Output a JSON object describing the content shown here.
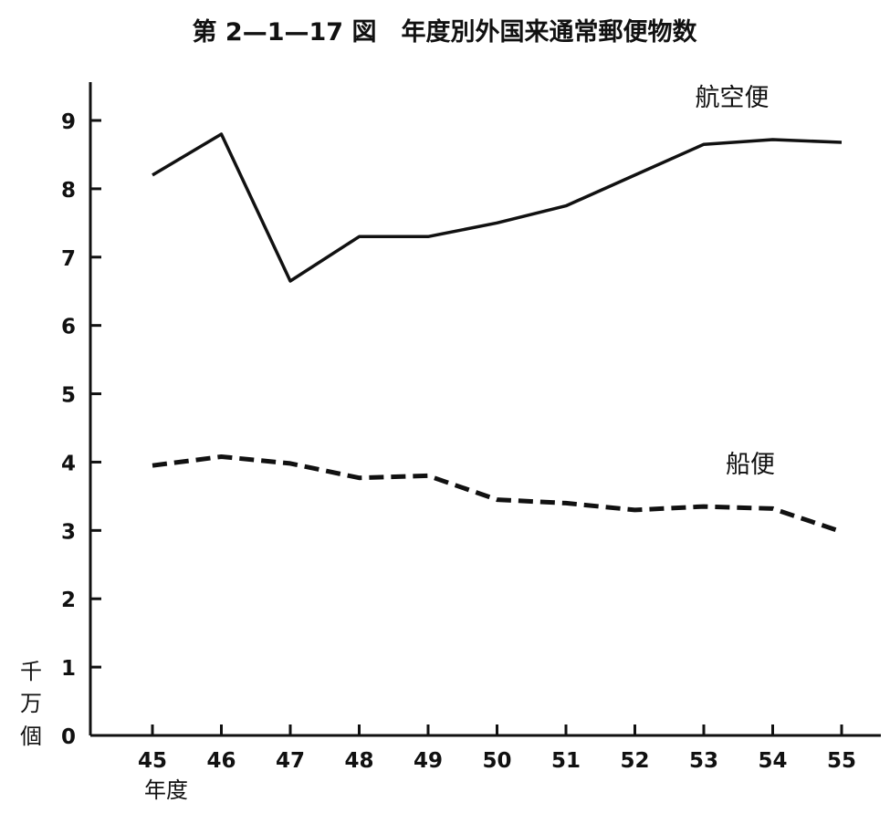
{
  "chart_data": {
    "type": "line",
    "title": "第 2—1—17 図　年度別外国来通常郵便物数",
    "ylabel_chars": [
      "千",
      "万",
      "個"
    ],
    "xlabel": "年度",
    "x": [
      45,
      46,
      47,
      48,
      49,
      50,
      51,
      52,
      53,
      54,
      55
    ],
    "ylim": [
      0,
      9.5
    ],
    "yticks": [
      0,
      1,
      2,
      3,
      4,
      5,
      6,
      7,
      8,
      9
    ],
    "grid": false,
    "legend": "none",
    "series": [
      {
        "name": "航空便",
        "style": "solid",
        "color": "#111111",
        "values": [
          8.2,
          8.8,
          6.65,
          7.3,
          7.3,
          7.5,
          7.75,
          8.2,
          8.65,
          8.72,
          8.68
        ]
      },
      {
        "name": "船便",
        "style": "dashed",
        "color": "#111111",
        "values": [
          3.95,
          4.08,
          3.98,
          3.77,
          3.8,
          3.45,
          3.4,
          3.3,
          3.35,
          3.32,
          2.98
        ]
      }
    ]
  }
}
